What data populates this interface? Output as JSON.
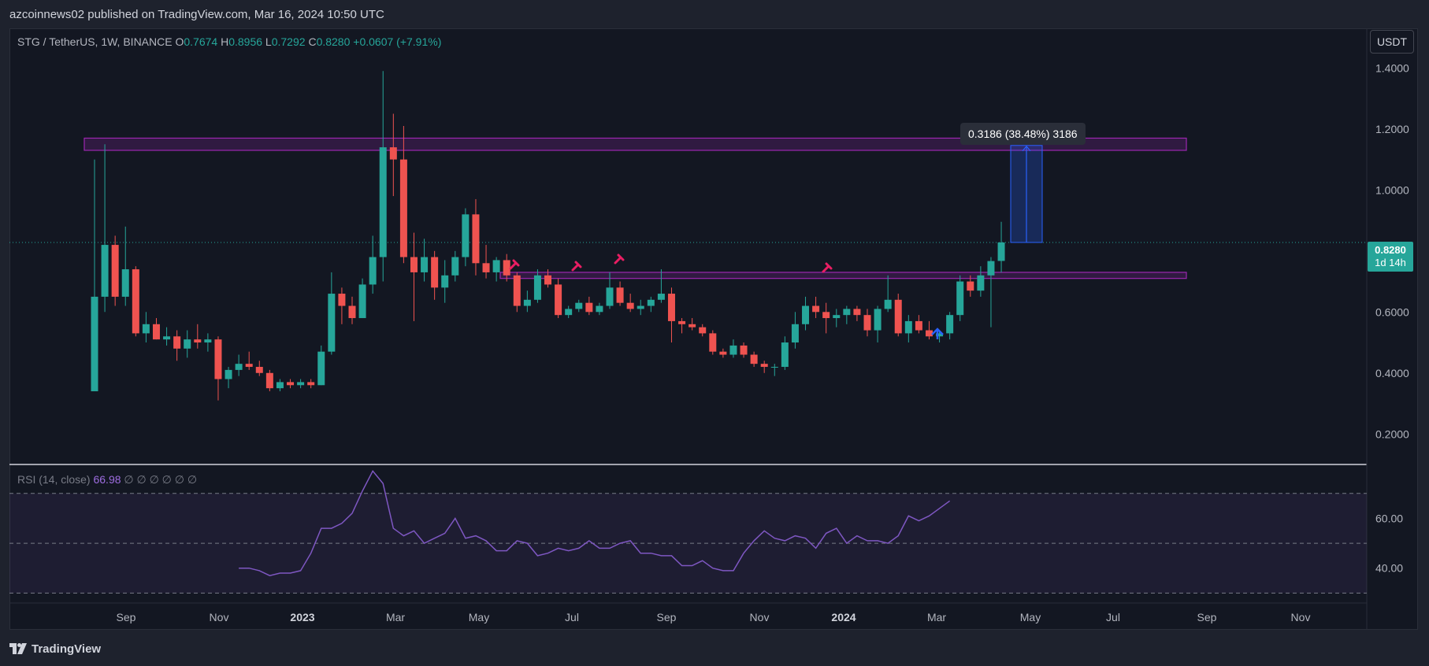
{
  "header": {
    "publish_text": "azcoinnews02 published on TradingView.com, Mar 16, 2024 10:50 UTC"
  },
  "symbol": {
    "name": "STG / TetherUS, 1W, BINANCE",
    "open_label": "O",
    "open": "0.7674",
    "high_label": "H",
    "high": "0.8956",
    "low_label": "L",
    "low": "0.7292",
    "close_label": "C",
    "close": "0.8280",
    "change": "+0.0607 (+7.91%)"
  },
  "currency_button": "USDT",
  "price_badge": {
    "price": "0.8280",
    "countdown": "1d 14h"
  },
  "measure_tooltip": "0.3186 (38.48%) 3186",
  "rsi_legend": {
    "label": "RSI (14, close)",
    "value": "66.98",
    "extras": "∅ ∅ ∅ ∅ ∅ ∅"
  },
  "footer": {
    "brand": "TradingView"
  },
  "colors": {
    "up": "#26a69a",
    "down": "#ef5350",
    "zone": "#9c27b0",
    "rsi": "#7e57c2",
    "measure": "#2962ff",
    "hammer": "#e91e63",
    "arrow": "#2962ff"
  },
  "chart_data": [
    {
      "type": "candlestick",
      "title": "STG / TetherUS, 1W, BINANCE",
      "y_axis_ticks": [
        "1.4000",
        "1.2000",
        "1.0000",
        "0.6000",
        "0.4000",
        "0.2000"
      ],
      "ylim": [
        0.1,
        1.53
      ],
      "x_axis_ticks": [
        "Sep",
        "Nov",
        "2023",
        "Mar",
        "May",
        "Jul",
        "Sep",
        "Nov",
        "2024",
        "Mar",
        "May",
        "Jul",
        "Sep",
        "Nov"
      ],
      "last_price": 0.828,
      "candles": [
        {
          "o": 0.34,
          "h": 1.1,
          "l": 0.34,
          "c": 0.65
        },
        {
          "o": 0.65,
          "h": 1.15,
          "l": 0.6,
          "c": 0.82
        },
        {
          "o": 0.82,
          "h": 0.85,
          "l": 0.62,
          "c": 0.65
        },
        {
          "o": 0.65,
          "h": 0.88,
          "l": 0.62,
          "c": 0.74
        },
        {
          "o": 0.74,
          "h": 0.75,
          "l": 0.52,
          "c": 0.53
        },
        {
          "o": 0.53,
          "h": 0.6,
          "l": 0.5,
          "c": 0.56
        },
        {
          "o": 0.56,
          "h": 0.58,
          "l": 0.51,
          "c": 0.51
        },
        {
          "o": 0.51,
          "h": 0.55,
          "l": 0.49,
          "c": 0.52
        },
        {
          "o": 0.52,
          "h": 0.54,
          "l": 0.44,
          "c": 0.48
        },
        {
          "o": 0.48,
          "h": 0.54,
          "l": 0.45,
          "c": 0.51
        },
        {
          "o": 0.51,
          "h": 0.56,
          "l": 0.48,
          "c": 0.5
        },
        {
          "o": 0.5,
          "h": 0.53,
          "l": 0.47,
          "c": 0.51
        },
        {
          "o": 0.51,
          "h": 0.52,
          "l": 0.31,
          "c": 0.38
        },
        {
          "o": 0.38,
          "h": 0.42,
          "l": 0.35,
          "c": 0.41
        },
        {
          "o": 0.41,
          "h": 0.46,
          "l": 0.39,
          "c": 0.43
        },
        {
          "o": 0.43,
          "h": 0.47,
          "l": 0.41,
          "c": 0.42
        },
        {
          "o": 0.42,
          "h": 0.44,
          "l": 0.39,
          "c": 0.4
        },
        {
          "o": 0.4,
          "h": 0.41,
          "l": 0.34,
          "c": 0.35
        },
        {
          "o": 0.35,
          "h": 0.38,
          "l": 0.34,
          "c": 0.37
        },
        {
          "o": 0.37,
          "h": 0.38,
          "l": 0.35,
          "c": 0.36
        },
        {
          "o": 0.36,
          "h": 0.38,
          "l": 0.35,
          "c": 0.37
        },
        {
          "o": 0.37,
          "h": 0.38,
          "l": 0.35,
          "c": 0.36
        },
        {
          "o": 0.36,
          "h": 0.49,
          "l": 0.36,
          "c": 0.47
        },
        {
          "o": 0.47,
          "h": 0.73,
          "l": 0.46,
          "c": 0.66
        },
        {
          "o": 0.66,
          "h": 0.68,
          "l": 0.56,
          "c": 0.62
        },
        {
          "o": 0.62,
          "h": 0.65,
          "l": 0.56,
          "c": 0.58
        },
        {
          "o": 0.58,
          "h": 0.71,
          "l": 0.58,
          "c": 0.69
        },
        {
          "o": 0.69,
          "h": 0.85,
          "l": 0.66,
          "c": 0.78
        },
        {
          "o": 0.78,
          "h": 1.39,
          "l": 0.7,
          "c": 1.14
        },
        {
          "o": 1.14,
          "h": 1.25,
          "l": 0.98,
          "c": 1.1
        },
        {
          "o": 1.1,
          "h": 1.21,
          "l": 0.76,
          "c": 0.78
        },
        {
          "o": 0.78,
          "h": 0.86,
          "l": 0.57,
          "c": 0.73
        },
        {
          "o": 0.73,
          "h": 0.84,
          "l": 0.7,
          "c": 0.78
        },
        {
          "o": 0.78,
          "h": 0.8,
          "l": 0.64,
          "c": 0.68
        },
        {
          "o": 0.68,
          "h": 0.77,
          "l": 0.63,
          "c": 0.72
        },
        {
          "o": 0.72,
          "h": 0.8,
          "l": 0.7,
          "c": 0.78
        },
        {
          "o": 0.78,
          "h": 0.94,
          "l": 0.75,
          "c": 0.92
        },
        {
          "o": 0.92,
          "h": 0.97,
          "l": 0.72,
          "c": 0.76
        },
        {
          "o": 0.76,
          "h": 0.82,
          "l": 0.71,
          "c": 0.73
        },
        {
          "o": 0.73,
          "h": 0.78,
          "l": 0.7,
          "c": 0.77
        },
        {
          "o": 0.77,
          "h": 0.79,
          "l": 0.7,
          "c": 0.72
        },
        {
          "o": 0.72,
          "h": 0.73,
          "l": 0.6,
          "c": 0.62
        },
        {
          "o": 0.62,
          "h": 0.67,
          "l": 0.6,
          "c": 0.64
        },
        {
          "o": 0.64,
          "h": 0.74,
          "l": 0.63,
          "c": 0.72
        },
        {
          "o": 0.72,
          "h": 0.74,
          "l": 0.68,
          "c": 0.69
        },
        {
          "o": 0.69,
          "h": 0.71,
          "l": 0.58,
          "c": 0.59
        },
        {
          "o": 0.59,
          "h": 0.62,
          "l": 0.58,
          "c": 0.61
        },
        {
          "o": 0.61,
          "h": 0.64,
          "l": 0.6,
          "c": 0.63
        },
        {
          "o": 0.63,
          "h": 0.65,
          "l": 0.59,
          "c": 0.6
        },
        {
          "o": 0.6,
          "h": 0.63,
          "l": 0.59,
          "c": 0.62
        },
        {
          "o": 0.62,
          "h": 0.73,
          "l": 0.61,
          "c": 0.68
        },
        {
          "o": 0.68,
          "h": 0.7,
          "l": 0.62,
          "c": 0.63
        },
        {
          "o": 0.63,
          "h": 0.66,
          "l": 0.6,
          "c": 0.61
        },
        {
          "o": 0.61,
          "h": 0.64,
          "l": 0.59,
          "c": 0.62
        },
        {
          "o": 0.62,
          "h": 0.65,
          "l": 0.6,
          "c": 0.64
        },
        {
          "o": 0.64,
          "h": 0.74,
          "l": 0.63,
          "c": 0.66
        },
        {
          "o": 0.66,
          "h": 0.68,
          "l": 0.5,
          "c": 0.57
        },
        {
          "o": 0.57,
          "h": 0.58,
          "l": 0.53,
          "c": 0.56
        },
        {
          "o": 0.56,
          "h": 0.58,
          "l": 0.54,
          "c": 0.55
        },
        {
          "o": 0.55,
          "h": 0.56,
          "l": 0.52,
          "c": 0.53
        },
        {
          "o": 0.53,
          "h": 0.54,
          "l": 0.46,
          "c": 0.47
        },
        {
          "o": 0.47,
          "h": 0.48,
          "l": 0.45,
          "c": 0.46
        },
        {
          "o": 0.46,
          "h": 0.51,
          "l": 0.45,
          "c": 0.49
        },
        {
          "o": 0.49,
          "h": 0.5,
          "l": 0.45,
          "c": 0.46
        },
        {
          "o": 0.46,
          "h": 0.47,
          "l": 0.42,
          "c": 0.43
        },
        {
          "o": 0.43,
          "h": 0.44,
          "l": 0.4,
          "c": 0.42
        },
        {
          "o": 0.42,
          "h": 0.43,
          "l": 0.39,
          "c": 0.42
        },
        {
          "o": 0.42,
          "h": 0.52,
          "l": 0.41,
          "c": 0.5
        },
        {
          "o": 0.5,
          "h": 0.6,
          "l": 0.48,
          "c": 0.56
        },
        {
          "o": 0.56,
          "h": 0.65,
          "l": 0.54,
          "c": 0.62
        },
        {
          "o": 0.62,
          "h": 0.65,
          "l": 0.58,
          "c": 0.6
        },
        {
          "o": 0.6,
          "h": 0.63,
          "l": 0.53,
          "c": 0.58
        },
        {
          "o": 0.58,
          "h": 0.61,
          "l": 0.55,
          "c": 0.59
        },
        {
          "o": 0.59,
          "h": 0.62,
          "l": 0.56,
          "c": 0.61
        },
        {
          "o": 0.61,
          "h": 0.62,
          "l": 0.57,
          "c": 0.59
        },
        {
          "o": 0.59,
          "h": 0.61,
          "l": 0.52,
          "c": 0.54
        },
        {
          "o": 0.54,
          "h": 0.62,
          "l": 0.5,
          "c": 0.61
        },
        {
          "o": 0.61,
          "h": 0.72,
          "l": 0.6,
          "c": 0.64
        },
        {
          "o": 0.64,
          "h": 0.66,
          "l": 0.52,
          "c": 0.53
        },
        {
          "o": 0.53,
          "h": 0.59,
          "l": 0.5,
          "c": 0.57
        },
        {
          "o": 0.57,
          "h": 0.59,
          "l": 0.53,
          "c": 0.54
        },
        {
          "o": 0.54,
          "h": 0.57,
          "l": 0.51,
          "c": 0.52
        },
        {
          "o": 0.52,
          "h": 0.54,
          "l": 0.5,
          "c": 0.53
        },
        {
          "o": 0.53,
          "h": 0.6,
          "l": 0.51,
          "c": 0.59
        },
        {
          "o": 0.59,
          "h": 0.72,
          "l": 0.57,
          "c": 0.7
        },
        {
          "o": 0.7,
          "h": 0.72,
          "l": 0.65,
          "c": 0.67
        },
        {
          "o": 0.67,
          "h": 0.75,
          "l": 0.65,
          "c": 0.72
        },
        {
          "o": 0.72,
          "h": 0.78,
          "l": 0.55,
          "c": 0.767
        },
        {
          "o": 0.7674,
          "h": 0.8956,
          "l": 0.7292,
          "c": 0.828
        }
      ],
      "zones": [
        {
          "name": "resistance",
          "from": 1.13,
          "to": 1.17
        },
        {
          "name": "support",
          "from": 0.71,
          "to": 0.73
        }
      ],
      "measure": {
        "from": 0.828,
        "to": 1.146,
        "change": 0.3186,
        "percent": 38.48
      }
    },
    {
      "type": "line",
      "title": "RSI (14, close)",
      "y_axis_ticks": [
        "60.00",
        "40.00"
      ],
      "levels": [
        70,
        50,
        30
      ],
      "ylim": [
        26,
        81
      ],
      "start_index": 14,
      "values": [
        40,
        40,
        39,
        37,
        38,
        38,
        39,
        46,
        56,
        56,
        58,
        62,
        71,
        79,
        74,
        56,
        53,
        55,
        50,
        52,
        54,
        60,
        52,
        53,
        51,
        47,
        47,
        51,
        50,
        45,
        46,
        48,
        47,
        48,
        51,
        48,
        48,
        50,
        51,
        46,
        46,
        45,
        45,
        41,
        41,
        43,
        40,
        39,
        39,
        46,
        51,
        55,
        52,
        51,
        53,
        52,
        48,
        54,
        56,
        50,
        53,
        51,
        51,
        50,
        53,
        61,
        59,
        61,
        64,
        67
      ]
    }
  ]
}
